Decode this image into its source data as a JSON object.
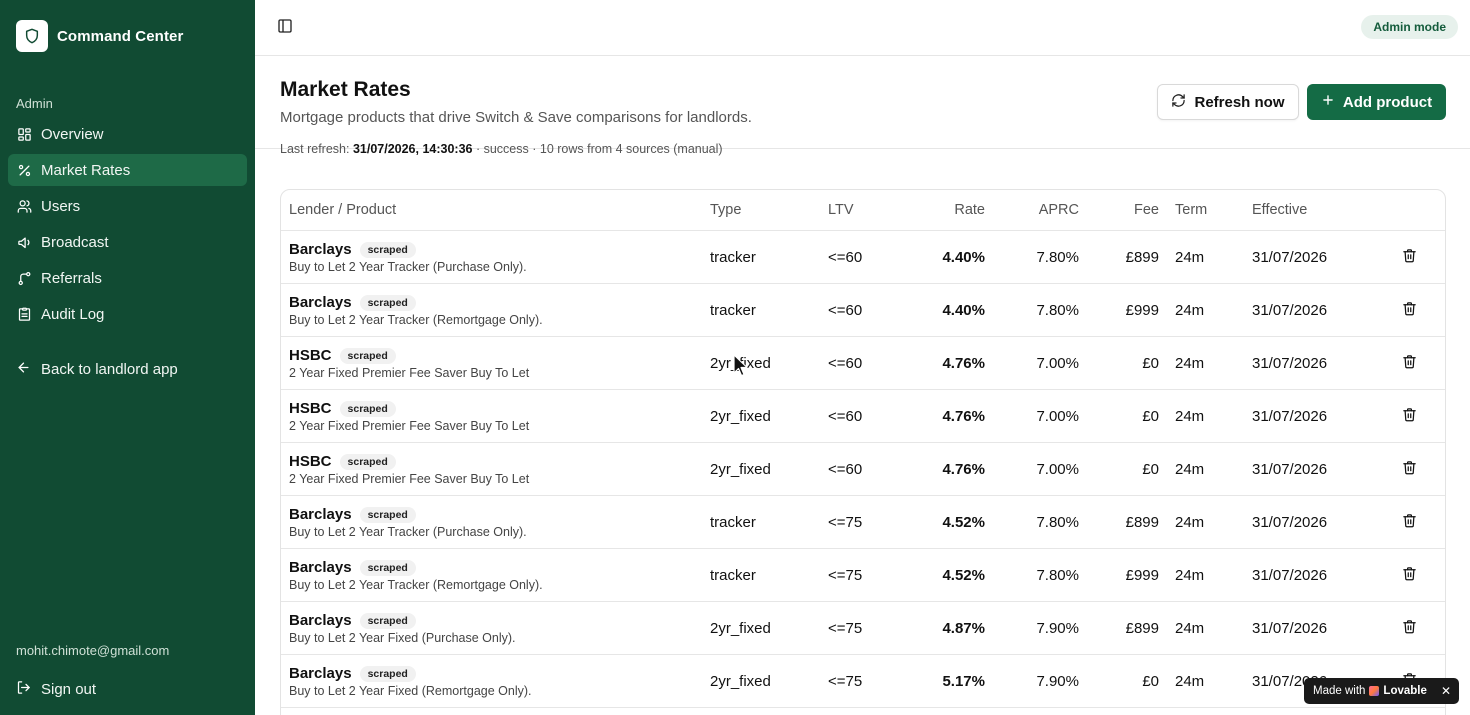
{
  "app": {
    "title": "Command Center"
  },
  "sidebar": {
    "section_label": "Admin",
    "items": [
      {
        "label": "Overview",
        "icon": "grid-icon"
      },
      {
        "label": "Market Rates",
        "icon": "percent-icon",
        "active": true
      },
      {
        "label": "Users",
        "icon": "users-icon"
      },
      {
        "label": "Broadcast",
        "icon": "megaphone-icon"
      },
      {
        "label": "Referrals",
        "icon": "share-icon"
      },
      {
        "label": "Audit Log",
        "icon": "log-icon"
      }
    ],
    "back_label": "Back to landlord app",
    "user_email": "mohit.chimote@gmail.com",
    "signout_label": "Sign out"
  },
  "topbar": {
    "mode_badge": "Admin mode"
  },
  "header": {
    "title": "Market Rates",
    "subtitle": "Mortgage products that drive Switch & Save comparisons for landlords.",
    "refresh_prefix": "Last refresh: ",
    "refresh_time": "31/07/2026, 14:30:36",
    "refresh_suffix": " · success · 10 rows from 4 sources (manual)",
    "refresh_button": "Refresh now",
    "add_button": "Add product"
  },
  "table": {
    "columns": [
      "Lender / Product",
      "Type",
      "LTV",
      "Rate",
      "APRC",
      "Fee",
      "Term",
      "Effective"
    ],
    "rows": [
      {
        "lender": "Barclays",
        "badge": "scraped",
        "product": "Buy to Let 2 Year Tracker (Purchase Only).",
        "type": "tracker",
        "ltv": "<=60",
        "rate": "4.40%",
        "aprc": "7.80%",
        "fee": "£899",
        "term": "24m",
        "effective": "31/07/2026"
      },
      {
        "lender": "Barclays",
        "badge": "scraped",
        "product": "Buy to Let 2 Year Tracker (Remortgage Only).",
        "type": "tracker",
        "ltv": "<=60",
        "rate": "4.40%",
        "aprc": "7.80%",
        "fee": "£999",
        "term": "24m",
        "effective": "31/07/2026"
      },
      {
        "lender": "HSBC",
        "badge": "scraped",
        "product": "2 Year Fixed Premier Fee Saver Buy To Let",
        "type": "2yr_fixed",
        "ltv": "<=60",
        "rate": "4.76%",
        "aprc": "7.00%",
        "fee": "£0",
        "term": "24m",
        "effective": "31/07/2026"
      },
      {
        "lender": "HSBC",
        "badge": "scraped",
        "product": "2 Year Fixed Premier Fee Saver Buy To Let",
        "type": "2yr_fixed",
        "ltv": "<=60",
        "rate": "4.76%",
        "aprc": "7.00%",
        "fee": "£0",
        "term": "24m",
        "effective": "31/07/2026"
      },
      {
        "lender": "HSBC",
        "badge": "scraped",
        "product": "2 Year Fixed Premier Fee Saver Buy To Let",
        "type": "2yr_fixed",
        "ltv": "<=60",
        "rate": "4.76%",
        "aprc": "7.00%",
        "fee": "£0",
        "term": "24m",
        "effective": "31/07/2026"
      },
      {
        "lender": "Barclays",
        "badge": "scraped",
        "product": "Buy to Let 2 Year Tracker (Purchase Only).",
        "type": "tracker",
        "ltv": "<=75",
        "rate": "4.52%",
        "aprc": "7.80%",
        "fee": "£899",
        "term": "24m",
        "effective": "31/07/2026"
      },
      {
        "lender": "Barclays",
        "badge": "scraped",
        "product": "Buy to Let 2 Year Tracker (Remortgage Only).",
        "type": "tracker",
        "ltv": "<=75",
        "rate": "4.52%",
        "aprc": "7.80%",
        "fee": "£999",
        "term": "24m",
        "effective": "31/07/2026"
      },
      {
        "lender": "Barclays",
        "badge": "scraped",
        "product": "Buy to Let 2 Year Fixed (Purchase Only).",
        "type": "2yr_fixed",
        "ltv": "<=75",
        "rate": "4.87%",
        "aprc": "7.90%",
        "fee": "£899",
        "term": "24m",
        "effective": "31/07/2026"
      },
      {
        "lender": "Barclays",
        "badge": "scraped",
        "product": "Buy to Let 2 Year Fixed (Remortgage Only).",
        "type": "2yr_fixed",
        "ltv": "<=75",
        "rate": "5.17%",
        "aprc": "7.90%",
        "fee": "£0",
        "term": "24m",
        "effective": "31/07/2026"
      }
    ]
  },
  "lovable_tag": {
    "prefix": "Made with",
    "brand": "Lovable",
    "close": "✕"
  },
  "colors": {
    "sidebar_bg": "#114b33",
    "accent": "#146b45",
    "active_nav": "#1e6a47"
  }
}
